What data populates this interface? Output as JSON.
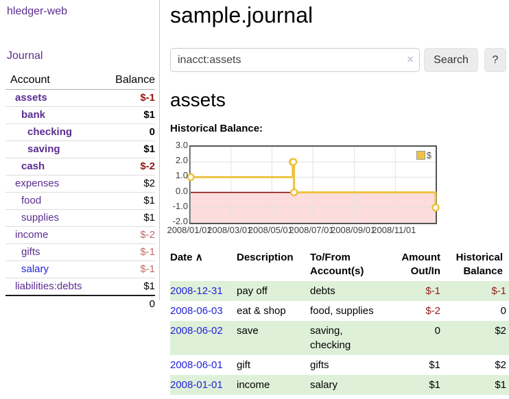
{
  "app": {
    "brand": "hledger-web",
    "nav_journal": "Journal"
  },
  "sidebar": {
    "columns": {
      "account": "Account",
      "balance": "Balance"
    },
    "accounts": [
      {
        "name": "assets",
        "balance": "$-1"
      },
      {
        "name": "bank",
        "balance": "$1"
      },
      {
        "name": "checking",
        "balance": "0"
      },
      {
        "name": "saving",
        "balance": "$1"
      },
      {
        "name": "cash",
        "balance": "$-2"
      },
      {
        "name": "expenses",
        "balance": "$2"
      },
      {
        "name": "food",
        "balance": "$1"
      },
      {
        "name": "supplies",
        "balance": "$1"
      },
      {
        "name": "income",
        "balance": "$-2"
      },
      {
        "name": "gifts",
        "balance": "$-1"
      },
      {
        "name": "salary",
        "balance": "$-1"
      },
      {
        "name": "liabilities:debts",
        "balance": "$1"
      }
    ],
    "total": "0"
  },
  "header": {
    "title": "sample.journal"
  },
  "search": {
    "value": "inacct:assets",
    "clear_icon": "×",
    "button": "Search",
    "help_button": "?"
  },
  "account_page": {
    "heading": "assets",
    "chart_title": "Historical Balance:"
  },
  "chart_data": {
    "type": "line",
    "title": "Historical Balance:",
    "step": true,
    "series": [
      {
        "name": "$",
        "color": "#edc240",
        "points": [
          [
            "2008-01-01",
            1
          ],
          [
            "2008-06-01",
            2
          ],
          [
            "2008-06-02",
            2
          ],
          [
            "2008-06-03",
            0
          ],
          [
            "2008-12-31",
            -1
          ]
        ]
      }
    ],
    "x_range": [
      "2008-01-01",
      "2008-12-31"
    ],
    "ylim": [
      -2,
      3
    ],
    "yticks": [
      {
        "v": 3,
        "label": "3.0"
      },
      {
        "v": 2,
        "label": "2.0"
      },
      {
        "v": 1,
        "label": "1.0"
      },
      {
        "v": 0,
        "label": "0.0"
      },
      {
        "v": -1,
        "label": "-1.0"
      },
      {
        "v": -2,
        "label": "-2.0"
      }
    ],
    "xticks": [
      {
        "date": "2008-01-01",
        "label": "2008/01/01"
      },
      {
        "date": "2008-03-01",
        "label": "2008/03/01"
      },
      {
        "date": "2008-05-01",
        "label": "2008/05/01"
      },
      {
        "date": "2008-07-01",
        "label": "2008/07/01"
      },
      {
        "date": "2008-09-01",
        "label": "2008/09/01"
      },
      {
        "date": "2008-11-01",
        "label": "2008/11/01"
      }
    ],
    "grid": true,
    "zero_line_color": "#7f0000",
    "negative_region_color": "#fcdcdc",
    "legend": {
      "label": "$",
      "position": "top-right"
    }
  },
  "register": {
    "columns": {
      "date": "Date",
      "sort_arrow": "∧",
      "description": "Description",
      "tofrom": "To/From Account(s)",
      "amount": "Amount Out/In",
      "balance": "Historical Balance"
    },
    "rows": [
      {
        "date": "2008-12-31",
        "description": "pay off",
        "tofrom": "debts",
        "amount": "$-1",
        "balance": "$-1"
      },
      {
        "date": "2008-06-03",
        "description": "eat & shop",
        "tofrom": "food, supplies",
        "amount": "$-2",
        "balance": "0"
      },
      {
        "date": "2008-06-02",
        "description": "save",
        "tofrom": "saving, checking",
        "amount": "0",
        "balance": "$2"
      },
      {
        "date": "2008-06-01",
        "description": "gift",
        "tofrom": "gifts",
        "amount": "$1",
        "balance": "$2"
      },
      {
        "date": "2008-01-01",
        "description": "income",
        "tofrom": "salary",
        "amount": "$1",
        "balance": "$1"
      }
    ]
  }
}
